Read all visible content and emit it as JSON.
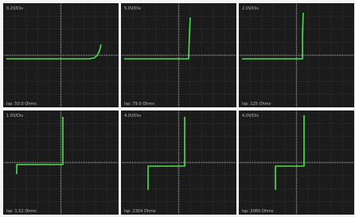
{
  "panels": [
    {
      "scale": "0.2V/Div",
      "info": "Isp: 50.0 Ohms"
    },
    {
      "scale": "5.0V/Div",
      "info": "Isp: 79.0 Ohms"
    },
    {
      "scale": "2.0V/Div",
      "info": "Isp: 125 Ohms"
    },
    {
      "scale": "1.0V/Div",
      "info": "Isp: 1.52 Ohms"
    },
    {
      "scale": "4.0V/Div",
      "info": "Isp: 2304 Ohms"
    },
    {
      "scale": "4.0V/Div",
      "info": "Isp: 2060 Ohms"
    }
  ]
}
